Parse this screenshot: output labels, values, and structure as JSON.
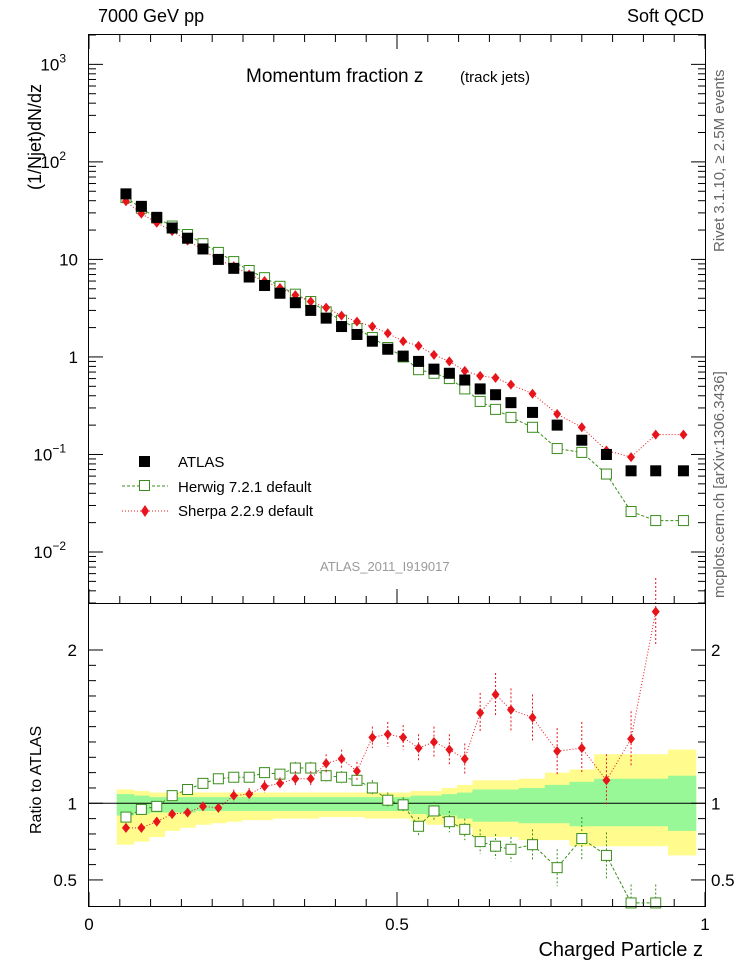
{
  "header": {
    "left": "7000 GeV pp",
    "right": "Soft QCD",
    "side_top": "Rivet 3.1.10, ≥ 2.5M events",
    "side_bottom": "mcplots.cern.ch [arXiv:1306.3436]"
  },
  "chart_data": [
    {
      "type": "scatter",
      "title": "Momentum fraction z",
      "subtitle": "(track jets)",
      "ylabel": "(1/Njet)dN/dz",
      "xlabel": "",
      "yscale": "log",
      "ylim": [
        0.003,
        2000
      ],
      "xlim": [
        0,
        1
      ],
      "yticks": [
        {
          "v": 1000,
          "b": "10",
          "e": "3"
        },
        {
          "v": 100,
          "b": "10",
          "e": "2"
        },
        {
          "v": 10,
          "b": "10",
          "e": ""
        },
        {
          "v": 1,
          "b": "1",
          "e": ""
        },
        {
          "v": 0.1,
          "b": "10",
          "e": "−1"
        },
        {
          "v": 0.01,
          "b": "10",
          "e": "−2"
        }
      ],
      "watermark": "ATLAS_2011_I919017",
      "legend_position": "bottom-left",
      "series": [
        {
          "name": "ATLAS",
          "marker": "filled-square",
          "color": "#000000",
          "x": [
            0.06,
            0.085,
            0.11,
            0.135,
            0.16,
            0.185,
            0.21,
            0.235,
            0.26,
            0.285,
            0.31,
            0.335,
            0.36,
            0.385,
            0.41,
            0.435,
            0.46,
            0.485,
            0.51,
            0.535,
            0.56,
            0.585,
            0.61,
            0.635,
            0.66,
            0.685,
            0.72,
            0.76,
            0.8,
            0.84,
            0.88,
            0.92,
            0.965
          ],
          "y": [
            47,
            35,
            27,
            21,
            16.5,
            12.8,
            10.0,
            8.1,
            6.6,
            5.4,
            4.5,
            3.6,
            3.0,
            2.5,
            2.05,
            1.7,
            1.45,
            1.2,
            1.02,
            0.9,
            0.75,
            0.68,
            0.58,
            0.47,
            0.41,
            0.34,
            0.27,
            0.2,
            0.14,
            0.1,
            0.068,
            0.068,
            0.068
          ],
          "show_y": [
            47,
            35,
            27,
            21,
            16.5,
            12.8,
            10.0,
            8.1,
            6.6,
            5.4,
            4.5,
            3.6,
            3.0,
            2.5,
            2.05,
            1.7,
            1.45,
            1.2,
            1.02,
            0.9,
            0.75,
            0.68,
            0.58,
            0.47,
            0.41,
            0.34,
            0.27,
            0.2,
            0.14,
            0.1,
            0.068,
            0.068,
            0.068
          ]
        },
        {
          "name": "Herwig 7.2.1 default",
          "marker": "open-square",
          "color": "#3a8d1c",
          "x": [
            0.06,
            0.085,
            0.11,
            0.135,
            0.16,
            0.185,
            0.21,
            0.235,
            0.26,
            0.285,
            0.31,
            0.335,
            0.36,
            0.385,
            0.41,
            0.435,
            0.46,
            0.485,
            0.51,
            0.535,
            0.56,
            0.585,
            0.61,
            0.635,
            0.66,
            0.685,
            0.72,
            0.76,
            0.8,
            0.84,
            0.88,
            0.92,
            0.965
          ],
          "y": [
            43,
            33.5,
            26.5,
            22,
            18,
            14.5,
            11.8,
            9.5,
            7.7,
            6.5,
            5.3,
            4.4,
            3.7,
            2.9,
            2.38,
            1.95,
            1.58,
            1.25,
            1.0,
            0.74,
            0.68,
            0.6,
            0.47,
            0.35,
            0.29,
            0.24,
            0.19,
            0.115,
            0.105,
            0.063,
            0.026,
            0.021,
            0.021
          ]
        },
        {
          "name": "Sherpa 2.2.9 default",
          "marker": "filled-diamond",
          "color": "#e8141c",
          "x": [
            0.06,
            0.085,
            0.11,
            0.135,
            0.16,
            0.185,
            0.21,
            0.235,
            0.26,
            0.285,
            0.31,
            0.335,
            0.36,
            0.385,
            0.41,
            0.435,
            0.46,
            0.485,
            0.51,
            0.535,
            0.56,
            0.585,
            0.61,
            0.635,
            0.66,
            0.685,
            0.72,
            0.76,
            0.8,
            0.84,
            0.88,
            0.92,
            0.965
          ],
          "y": [
            39.5,
            29.5,
            23.8,
            19.5,
            15.6,
            12.6,
            9.9,
            8.5,
            7.0,
            6.0,
            5.1,
            4.3,
            3.7,
            3.2,
            2.65,
            2.3,
            2.05,
            1.75,
            1.45,
            1.3,
            1.05,
            0.9,
            0.72,
            0.64,
            0.61,
            0.52,
            0.42,
            0.26,
            0.19,
            0.11,
            0.094,
            0.16,
            0.16
          ]
        }
      ]
    },
    {
      "type": "scatter",
      "ylabel": "Ratio to ATLAS",
      "xlabel": "Charged Particle z",
      "xlim": [
        0,
        1
      ],
      "ylim": [
        0.33,
        2.3
      ],
      "yticks": [
        2,
        1,
        0.5
      ],
      "xticks": [
        0,
        0.5,
        1
      ],
      "bands": {
        "edges": [
          0.045,
          0.0725,
          0.0975,
          0.1225,
          0.1475,
          0.1725,
          0.1975,
          0.2225,
          0.2475,
          0.2725,
          0.2975,
          0.3225,
          0.3475,
          0.3725,
          0.3975,
          0.4225,
          0.4475,
          0.4725,
          0.4975,
          0.5225,
          0.5475,
          0.5725,
          0.5975,
          0.6225,
          0.6475,
          0.6725,
          0.6975,
          0.74,
          0.78,
          0.82,
          0.86,
          0.9,
          0.94,
          0.985
        ],
        "yellow_lo": [
          0.73,
          0.75,
          0.78,
          0.82,
          0.84,
          0.86,
          0.87,
          0.88,
          0.89,
          0.89,
          0.9,
          0.9,
          0.9,
          0.91,
          0.91,
          0.91,
          0.9,
          0.9,
          0.9,
          0.88,
          0.86,
          0.86,
          0.84,
          0.78,
          0.78,
          0.78,
          0.76,
          0.76,
          0.72,
          0.72,
          0.72,
          0.72,
          0.66
        ],
        "yellow_hi": [
          1.09,
          1.08,
          1.07,
          1.07,
          1.07,
          1.07,
          1.07,
          1.07,
          1.07,
          1.07,
          1.07,
          1.07,
          1.07,
          1.07,
          1.07,
          1.07,
          1.07,
          1.07,
          1.07,
          1.08,
          1.08,
          1.1,
          1.12,
          1.15,
          1.15,
          1.15,
          1.16,
          1.2,
          1.22,
          1.32,
          1.32,
          1.32,
          1.35
        ],
        "green_lo": [
          0.92,
          0.93,
          0.94,
          0.94,
          0.94,
          0.95,
          0.95,
          0.95,
          0.95,
          0.95,
          0.95,
          0.95,
          0.95,
          0.95,
          0.95,
          0.95,
          0.95,
          0.95,
          0.95,
          0.93,
          0.92,
          0.92,
          0.9,
          0.88,
          0.88,
          0.88,
          0.87,
          0.87,
          0.85,
          0.85,
          0.85,
          0.85,
          0.82
        ],
        "green_hi": [
          1.06,
          1.05,
          1.04,
          1.04,
          1.04,
          1.04,
          1.04,
          1.04,
          1.04,
          1.04,
          1.04,
          1.04,
          1.04,
          1.04,
          1.04,
          1.04,
          1.04,
          1.04,
          1.04,
          1.05,
          1.05,
          1.06,
          1.07,
          1.09,
          1.09,
          1.09,
          1.1,
          1.12,
          1.14,
          1.16,
          1.16,
          1.16,
          1.18
        ]
      },
      "series": [
        {
          "name": "Herwig 7.2.1 default",
          "marker": "open-square",
          "color": "#3a8d1c",
          "x": [
            0.06,
            0.085,
            0.11,
            0.135,
            0.16,
            0.185,
            0.21,
            0.235,
            0.26,
            0.285,
            0.31,
            0.335,
            0.36,
            0.385,
            0.41,
            0.435,
            0.46,
            0.485,
            0.51,
            0.535,
            0.56,
            0.585,
            0.61,
            0.635,
            0.66,
            0.685,
            0.72,
            0.76,
            0.8,
            0.84,
            0.88,
            0.92
          ],
          "y": [
            0.91,
            0.96,
            0.98,
            1.05,
            1.09,
            1.13,
            1.16,
            1.17,
            1.17,
            1.2,
            1.19,
            1.23,
            1.23,
            1.18,
            1.17,
            1.15,
            1.1,
            1.02,
            0.99,
            0.85,
            0.95,
            0.88,
            0.83,
            0.75,
            0.72,
            0.7,
            0.73,
            0.58,
            0.77,
            0.66,
            0.35,
            0.35
          ],
          "err": [
            0.03,
            0.03,
            0.03,
            0.03,
            0.03,
            0.03,
            0.03,
            0.03,
            0.03,
            0.03,
            0.03,
            0.04,
            0.04,
            0.04,
            0.04,
            0.04,
            0.05,
            0.05,
            0.05,
            0.06,
            0.06,
            0.07,
            0.07,
            0.08,
            0.08,
            0.08,
            0.1,
            0.12,
            0.14,
            0.15,
            0.12,
            0.12
          ]
        },
        {
          "name": "Sherpa 2.2.9 default",
          "marker": "filled-diamond",
          "color": "#e8141c",
          "x": [
            0.06,
            0.085,
            0.11,
            0.135,
            0.16,
            0.185,
            0.21,
            0.235,
            0.26,
            0.285,
            0.31,
            0.335,
            0.36,
            0.385,
            0.41,
            0.435,
            0.46,
            0.485,
            0.51,
            0.535,
            0.56,
            0.585,
            0.61,
            0.635,
            0.66,
            0.685,
            0.72,
            0.76,
            0.8,
            0.84,
            0.88,
            0.92
          ],
          "y": [
            0.84,
            0.84,
            0.88,
            0.93,
            0.94,
            0.98,
            0.97,
            1.05,
            1.06,
            1.11,
            1.13,
            1.16,
            1.16,
            1.26,
            1.29,
            1.21,
            1.43,
            1.45,
            1.43,
            1.36,
            1.4,
            1.35,
            1.29,
            1.59,
            1.71,
            1.61,
            1.56,
            1.34,
            1.36,
            1.15,
            1.42,
            2.25
          ],
          "err": [
            0.03,
            0.03,
            0.03,
            0.03,
            0.03,
            0.03,
            0.03,
            0.04,
            0.04,
            0.04,
            0.04,
            0.05,
            0.05,
            0.06,
            0.06,
            0.06,
            0.07,
            0.08,
            0.08,
            0.09,
            0.1,
            0.1,
            0.1,
            0.13,
            0.14,
            0.14,
            0.15,
            0.15,
            0.17,
            0.17,
            0.18,
            0.22
          ]
        }
      ]
    }
  ]
}
